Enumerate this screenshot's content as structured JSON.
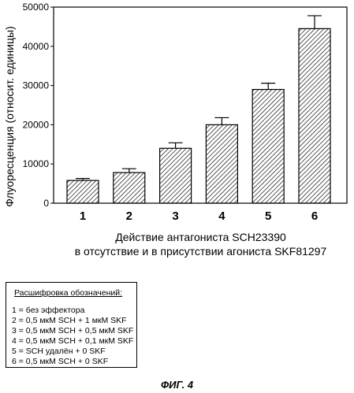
{
  "chart_data": {
    "type": "bar",
    "categories": [
      "1",
      "2",
      "3",
      "4",
      "5",
      "6"
    ],
    "values": [
      5800,
      7800,
      14000,
      20000,
      29000,
      44500
    ],
    "errors": [
      500,
      1000,
      1400,
      1800,
      1600,
      3300
    ],
    "ylabel": "Флуоресценция (относит. единицы)",
    "xlabel_line1": "Действие антагониста SCH23390",
    "xlabel_line2": "в отсутствие и в присутствии агониста SKF81297",
    "yticks": [
      "0",
      "10000",
      "20000",
      "30000",
      "40000",
      "50000"
    ],
    "ylim": [
      0,
      50000
    ],
    "bar_fill": "hatched"
  },
  "legend": {
    "title": "Расшифровка обозначений:",
    "items": [
      "1 = без эффектора",
      "2 = 0,5 мкМ SCH + 1 мкМ SKF",
      "3 = 0,5 мкМ SCH + 0,5 мкМ SKF",
      "4 = 0,5 мкМ SCH + 0,1 мкМ SKF",
      "5 = SCH удалён + 0 SKF",
      "6 = 0,5 мкМ SCH + 0 SKF"
    ]
  },
  "figure_label": "ФИГ. 4"
}
